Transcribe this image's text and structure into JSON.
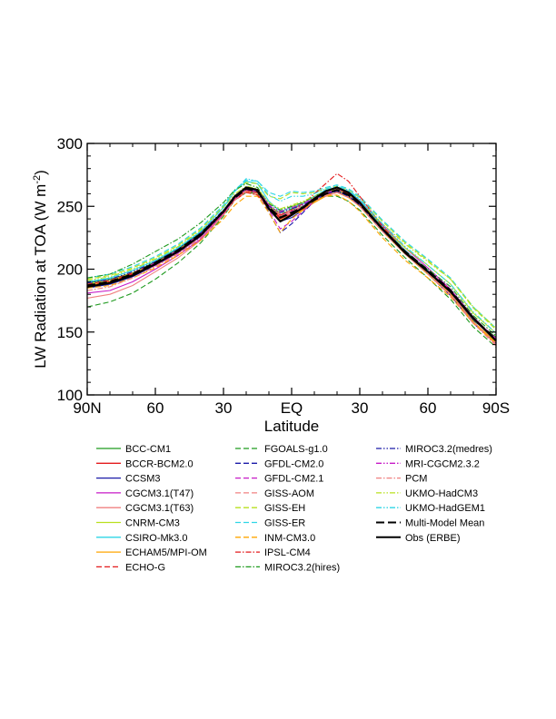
{
  "chart_data": {
    "type": "line",
    "title": "",
    "xlabel": "Latitude",
    "ylabel": "LW Radiation at TOA (W m",
    "ylabel_sup": "-2",
    "ylabel_end": ")",
    "xlim": [
      90,
      -90
    ],
    "ylim": [
      100,
      300
    ],
    "x_ticks": [
      {
        "value": 90,
        "label": "90N"
      },
      {
        "value": 60,
        "label": "60"
      },
      {
        "value": 30,
        "label": "30"
      },
      {
        "value": 0,
        "label": "EQ"
      },
      {
        "value": -30,
        "label": "30"
      },
      {
        "value": -60,
        "label": "60"
      },
      {
        "value": -90,
        "label": "90S"
      }
    ],
    "y_ticks": [
      {
        "value": 100,
        "label": "100"
      },
      {
        "value": 150,
        "label": "150"
      },
      {
        "value": 200,
        "label": "200"
      },
      {
        "value": 250,
        "label": "250"
      },
      {
        "value": 300,
        "label": "300"
      }
    ],
    "grid": false,
    "legend_position": "bottom",
    "x": [
      90,
      80,
      70,
      60,
      50,
      40,
      30,
      25,
      20,
      15,
      10,
      5,
      0,
      -5,
      -10,
      -15,
      -20,
      -25,
      -30,
      -40,
      -50,
      -60,
      -70,
      -80,
      -90
    ],
    "series": [
      {
        "name": "BCC-CM1",
        "color": "#1e9a1e",
        "dash": "solid",
        "width": 1.1,
        "values": [
          189,
          192,
          197,
          206,
          216,
          229,
          246,
          258,
          264,
          262,
          248,
          242,
          248,
          252,
          258,
          262,
          262,
          258,
          251,
          231,
          213,
          198,
          181,
          159,
          146
        ]
      },
      {
        "name": "BCCR-BCM2.0",
        "color": "#e41a1c",
        "dash": "solid",
        "width": 1.1,
        "values": [
          187,
          190,
          196,
          204,
          214,
          227,
          245,
          257,
          263,
          261,
          250,
          240,
          244,
          248,
          254,
          260,
          264,
          260,
          253,
          233,
          215,
          199,
          183,
          161,
          144
        ]
      },
      {
        "name": "CCSM3",
        "color": "#1a1aa8",
        "dash": "solid",
        "width": 1.1,
        "values": [
          185,
          188,
          194,
          203,
          213,
          226,
          244,
          256,
          262,
          261,
          248,
          238,
          241,
          247,
          255,
          261,
          263,
          258,
          250,
          230,
          212,
          196,
          179,
          157,
          141
        ]
      },
      {
        "name": "CGCM3.1(T47)",
        "color": "#c71ac7",
        "dash": "solid",
        "width": 1.1,
        "values": [
          181,
          183,
          190,
          200,
          211,
          224,
          244,
          257,
          264,
          263,
          251,
          243,
          246,
          250,
          257,
          262,
          265,
          262,
          255,
          235,
          217,
          201,
          184,
          162,
          144
        ]
      },
      {
        "name": "CGCM3.1(T63)",
        "color": "#f08080",
        "dash": "solid",
        "width": 1.1,
        "values": [
          177,
          180,
          187,
          198,
          209,
          223,
          243,
          256,
          263,
          262,
          250,
          242,
          245,
          249,
          256,
          261,
          264,
          261,
          254,
          234,
          215,
          198,
          181,
          158,
          140
        ]
      },
      {
        "name": "CNRM-CM3",
        "color": "#b8e01e",
        "dash": "solid",
        "width": 1.1,
        "values": [
          188,
          191,
          197,
          205,
          215,
          228,
          246,
          257,
          262,
          260,
          250,
          245,
          250,
          253,
          257,
          260,
          262,
          258,
          252,
          234,
          217,
          203,
          188,
          165,
          149
        ]
      },
      {
        "name": "CSIRO-Mk3.0",
        "color": "#2ed6e6",
        "dash": "solid",
        "width": 1.1,
        "values": [
          190,
          193,
          199,
          207,
          217,
          230,
          249,
          262,
          270,
          268,
          254,
          246,
          249,
          252,
          258,
          263,
          265,
          262,
          255,
          234,
          215,
          199,
          182,
          160,
          143
        ]
      },
      {
        "name": "ECHAM5/MPI-OM",
        "color": "#ffa500",
        "dash": "solid",
        "width": 1.1,
        "values": [
          187,
          190,
          196,
          205,
          215,
          228,
          246,
          257,
          262,
          260,
          247,
          239,
          243,
          247,
          253,
          258,
          261,
          257,
          250,
          230,
          212,
          196,
          180,
          158,
          142
        ]
      },
      {
        "name": "ECHO-G",
        "color": "#e41a1c",
        "dash": "dashed",
        "width": 1.1,
        "values": [
          188,
          191,
          197,
          205,
          215,
          228,
          245,
          256,
          262,
          261,
          249,
          241,
          244,
          248,
          254,
          259,
          262,
          259,
          252,
          232,
          214,
          198,
          182,
          160,
          144
        ]
      },
      {
        "name": "FGOALS-g1.0",
        "color": "#1e9a1e",
        "dash": "dashed",
        "width": 1.1,
        "values": [
          170,
          174,
          181,
          192,
          205,
          221,
          242,
          255,
          261,
          260,
          249,
          244,
          247,
          250,
          255,
          258,
          258,
          254,
          247,
          227,
          209,
          193,
          176,
          154,
          138
        ]
      },
      {
        "name": "GFDL-CM2.0",
        "color": "#1a1aa8",
        "dash": "dashed",
        "width": 1.1,
        "values": [
          186,
          189,
          195,
          204,
          214,
          227,
          245,
          257,
          264,
          262,
          245,
          229,
          236,
          245,
          254,
          260,
          262,
          258,
          251,
          231,
          213,
          198,
          182,
          160,
          144
        ]
      },
      {
        "name": "GFDL-CM2.1",
        "color": "#c71ac7",
        "dash": "dashed",
        "width": 1.1,
        "values": [
          186,
          189,
          196,
          205,
          215,
          228,
          246,
          258,
          265,
          263,
          247,
          232,
          238,
          246,
          254,
          260,
          263,
          259,
          252,
          232,
          214,
          199,
          183,
          161,
          145
        ]
      },
      {
        "name": "GISS-AOM",
        "color": "#f08080",
        "dash": "dashed",
        "width": 1.1,
        "values": [
          186,
          189,
          195,
          203,
          213,
          226,
          244,
          255,
          261,
          259,
          249,
          243,
          246,
          249,
          254,
          258,
          261,
          258,
          251,
          231,
          213,
          197,
          180,
          158,
          141
        ]
      },
      {
        "name": "GISS-EH",
        "color": "#b8e01e",
        "dash": "dashed",
        "width": 1.1,
        "values": [
          192,
          195,
          201,
          209,
          219,
          232,
          250,
          262,
          269,
          268,
          258,
          256,
          261,
          260,
          261,
          264,
          266,
          263,
          257,
          238,
          221,
          207,
          192,
          169,
          152
        ]
      },
      {
        "name": "GISS-ER",
        "color": "#2ed6e6",
        "dash": "dashed",
        "width": 1.1,
        "values": [
          193,
          196,
          202,
          210,
          220,
          233,
          251,
          263,
          271,
          270,
          261,
          258,
          262,
          261,
          262,
          265,
          267,
          264,
          258,
          239,
          222,
          208,
          193,
          170,
          153
        ]
      },
      {
        "name": "INM-CM3.0",
        "color": "#ffa500",
        "dash": "dashed",
        "width": 1.1,
        "values": [
          185,
          187,
          193,
          201,
          211,
          223,
          240,
          251,
          258,
          258,
          245,
          229,
          240,
          247,
          254,
          258,
          259,
          254,
          246,
          225,
          207,
          193,
          178,
          157,
          141
        ]
      },
      {
        "name": "IPSL-CM4",
        "color": "#e41a1c",
        "dash": "dashdot",
        "width": 1.1,
        "values": [
          187,
          190,
          196,
          204,
          214,
          227,
          244,
          255,
          261,
          259,
          248,
          243,
          247,
          252,
          260,
          268,
          276,
          270,
          258,
          234,
          214,
          198,
          182,
          160,
          144
        ]
      },
      {
        "name": "MIROC3.2(hires)",
        "color": "#1e9a1e",
        "dash": "dashdot",
        "width": 1.1,
        "values": [
          193,
          196,
          204,
          214,
          224,
          237,
          253,
          263,
          268,
          265,
          252,
          247,
          250,
          253,
          258,
          262,
          263,
          259,
          252,
          232,
          214,
          200,
          186,
          163,
          147
        ]
      },
      {
        "name": "MIROC3.2(medres)",
        "color": "#1a1aa8",
        "dash": "dashdotdot",
        "width": 1.1,
        "values": [
          189,
          192,
          198,
          206,
          216,
          229,
          247,
          258,
          264,
          262,
          250,
          245,
          248,
          251,
          256,
          260,
          262,
          258,
          251,
          231,
          213,
          198,
          182,
          160,
          144
        ]
      },
      {
        "name": "MRI-CGCM2.3.2",
        "color": "#c71ac7",
        "dash": "dashdotdot",
        "width": 1.1,
        "values": [
          186,
          189,
          195,
          203,
          213,
          226,
          244,
          256,
          263,
          262,
          251,
          246,
          249,
          252,
          257,
          261,
          263,
          259,
          252,
          232,
          214,
          198,
          182,
          160,
          143
        ]
      },
      {
        "name": "PCM",
        "color": "#f08080",
        "dash": "dashdot",
        "width": 1.1,
        "values": [
          183,
          186,
          193,
          202,
          212,
          225,
          243,
          255,
          262,
          260,
          249,
          244,
          247,
          250,
          255,
          259,
          261,
          257,
          250,
          230,
          212,
          196,
          179,
          157,
          139
        ]
      },
      {
        "name": "UKMO-HadCM3",
        "color": "#b8e01e",
        "dash": "dashdotdot",
        "width": 1.1,
        "values": [
          191,
          194,
          200,
          208,
          218,
          231,
          249,
          260,
          266,
          264,
          253,
          248,
          251,
          254,
          258,
          262,
          263,
          259,
          253,
          236,
          220,
          206,
          192,
          170,
          153
        ]
      },
      {
        "name": "UKMO-HadGEM1",
        "color": "#2ed6e6",
        "dash": "dashdotdot",
        "width": 1.1,
        "values": [
          190,
          193,
          199,
          207,
          217,
          230,
          249,
          262,
          272,
          270,
          259,
          254,
          258,
          258,
          260,
          264,
          266,
          263,
          256,
          236,
          218,
          203,
          188,
          166,
          149
        ]
      },
      {
        "name": "Multi-Model Mean",
        "color": "#000000",
        "dash": "longdash",
        "width": 2.2,
        "values": [
          187,
          190,
          196,
          205,
          215,
          228,
          246,
          257,
          264,
          262,
          249,
          241,
          245,
          249,
          255,
          260,
          263,
          259,
          252,
          232,
          214,
          199,
          183,
          161,
          144
        ]
      },
      {
        "name": "Obs (ERBE)",
        "color": "#000000",
        "dash": "solid",
        "width": 2.2,
        "values": [
          186,
          189,
          195,
          204,
          214,
          227,
          246,
          258,
          265,
          263,
          248,
          238,
          243,
          249,
          256,
          262,
          265,
          261,
          253,
          232,
          213,
          198,
          182,
          161,
          143
        ]
      }
    ]
  }
}
